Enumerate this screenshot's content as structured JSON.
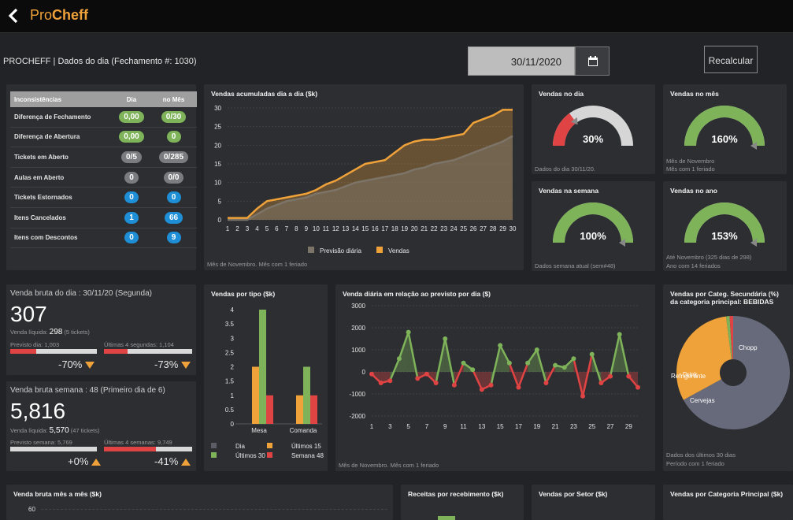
{
  "app": {
    "brand_light": "Pro",
    "brand_bold": "Cheff"
  },
  "header": {
    "title": "PROCHEFF | Dados do dia (Fechamento #: 1030)",
    "date": "30/11/2020",
    "recalc": "Recalcular"
  },
  "inconsistencias": {
    "headers": [
      "Inconsistências",
      "Dia",
      "no Mês"
    ],
    "rows": [
      {
        "label": "Diferença de Fechamento",
        "dia": "0,00",
        "mes": "0/30",
        "dia_color": "green",
        "mes_color": "green"
      },
      {
        "label": "Diferença de Abertura",
        "dia": "0,00",
        "mes": "0",
        "dia_color": "green",
        "mes_color": "green"
      },
      {
        "label": "Tickets em Aberto",
        "dia": "0/5",
        "mes": "0/285",
        "dia_color": "gray",
        "mes_color": "gray"
      },
      {
        "label": "Aulas em Aberto",
        "dia": "0",
        "mes": "0/0",
        "dia_color": "gray",
        "mes_color": "gray"
      },
      {
        "label": "Tickets Estornados",
        "dia": "0",
        "mes": "0",
        "dia_color": "blue",
        "mes_color": "blue"
      },
      {
        "label": "Itens Cancelados",
        "dia": "1",
        "mes": "66",
        "dia_color": "blue",
        "mes_color": "blue"
      },
      {
        "label": "Itens com Descontos",
        "dia": "0",
        "mes": "9",
        "dia_color": "blue",
        "mes_color": "blue"
      }
    ]
  },
  "acumuladas": {
    "title": "Vendas acumuladas dia a dia ($k)",
    "footer": "Mês de Novembro. Mês com 1 feriado",
    "legend": [
      "Previsão diária",
      "Vendas"
    ]
  },
  "gauges": [
    {
      "title": "Vendas no dia",
      "value": "30%",
      "frac": 0.3,
      "color": "#e04343",
      "footer": [
        "Dados do dia 30/11/20."
      ]
    },
    {
      "title": "Vendas no mês",
      "value": "160%",
      "frac": 1.0,
      "color": "#7eb35a",
      "footer": [
        "Mês de Novembro",
        "Mês com 1 feriado"
      ]
    },
    {
      "title": "Vendas na semana",
      "value": "100%",
      "frac": 1.0,
      "color": "#7eb35a",
      "footer": [
        "Dados semana atual (sem#48)"
      ]
    },
    {
      "title": "Vendas no ano",
      "value": "153%",
      "frac": 1.0,
      "color": "#7eb35a",
      "footer": [
        "Até Novembro (325 dias de 298)",
        "Ano com 14 feriados"
      ]
    }
  ],
  "venda_dia": {
    "title": "Venda bruta do dia : 30/11/20 (Segunda)",
    "value": "307",
    "liq_label": "Venda líquida:",
    "liq_value": "298",
    "liq_tickets": "(5 tickets)",
    "prev_label": "Previsto dia: 1,003",
    "ult_label": "Últimas 4 segundas: 1,104",
    "pct1": "-70%",
    "pct2": "-73%",
    "bar1": 0.3,
    "bar2": 0.27
  },
  "venda_semana": {
    "title": "Venda bruta semana : 48 (Primeiro dia de 6)",
    "value": "5,816",
    "liq_label": "Venda líquida:",
    "liq_value": "5,570",
    "liq_tickets": "(47 tickets)",
    "prev_label": "Previsto semana: 5,769",
    "ult_label": "Últimas 4 semanas: 9,749",
    "pct1": "+0%",
    "pct2": "-41%",
    "bar1": 1.0,
    "bar2": 0.59
  },
  "por_tipo": {
    "title": "Vendas por tipo ($k)",
    "legend": [
      "Dia",
      "Últimos 15",
      "Últimos 30",
      "Semana 48"
    ]
  },
  "diaria": {
    "title": "Venda diária em relação ao previsto por dia ($)",
    "footer": "Mês de Novembro. Mês com 1 feriado"
  },
  "pie": {
    "title": "Vendas por Categ. Secundária (%) da categoria principal: BEBIDAS",
    "footer": [
      "Dados dos últimos 30 dias",
      "Período com 1 feriado"
    ],
    "labels": [
      "Chopp",
      "Cervejas",
      "Refrigerante",
      "Drink"
    ]
  },
  "bottom": {
    "mes_a_mes": "Venda bruta mês a mês ($k)",
    "mes_tick": "60",
    "receitas": "Receitas por recebimento ($k)",
    "setor": "Vendas por Setor ($k)",
    "categoria": "Vendas por Categoria Principal ($k)"
  },
  "chart_data": [
    {
      "type": "area",
      "title": "Vendas acumuladas dia a dia ($k)",
      "x": [
        1,
        2,
        3,
        4,
        5,
        6,
        7,
        8,
        9,
        10,
        11,
        12,
        13,
        14,
        15,
        16,
        17,
        18,
        19,
        20,
        21,
        22,
        23,
        24,
        25,
        26,
        27,
        28,
        29,
        30
      ],
      "ylim": [
        0,
        30
      ],
      "yticks": [
        0,
        5,
        10,
        15,
        20,
        25,
        30
      ],
      "series": [
        {
          "name": "Previsão diária",
          "color": "#7d7468",
          "values": [
            0,
            0,
            0,
            1.5,
            3,
            4,
            5,
            5.5,
            6,
            7,
            7.5,
            8,
            9,
            10,
            10.5,
            11,
            11.5,
            12,
            12.5,
            13.5,
            14,
            15,
            15.5,
            16,
            17,
            18,
            19,
            20,
            21,
            22.5
          ]
        },
        {
          "name": "Vendas",
          "color": "#f0a23a",
          "values": [
            0.5,
            0.5,
            0.5,
            3,
            5,
            5.5,
            6,
            6.5,
            7,
            8,
            9.5,
            10.5,
            12,
            13.5,
            15,
            15.5,
            16,
            18,
            20,
            21,
            21.5,
            21.5,
            22,
            22.5,
            23,
            26,
            27,
            28,
            29.5,
            29.5
          ]
        }
      ]
    },
    {
      "type": "bar",
      "title": "Vendas por tipo ($k)",
      "categories": [
        "Mesa",
        "Comanda"
      ],
      "ylim": [
        0,
        4
      ],
      "yticks": [
        0,
        0.5,
        1,
        1.5,
        2,
        2.5,
        3,
        3.5,
        4
      ],
      "series": [
        {
          "name": "Dia",
          "color": "#5a5d66",
          "values": [
            0,
            0
          ]
        },
        {
          "name": "Últimos 15",
          "color": "#f0a23a",
          "values": [
            2,
            1
          ]
        },
        {
          "name": "Últimos 30",
          "color": "#7eb35a",
          "values": [
            4,
            2
          ]
        },
        {
          "name": "Semana 48",
          "color": "#e04343",
          "values": [
            1,
            1
          ]
        }
      ]
    },
    {
      "type": "line",
      "title": "Venda diária em relação ao previsto por dia ($)",
      "x": [
        1,
        2,
        3,
        4,
        5,
        6,
        7,
        8,
        9,
        10,
        11,
        12,
        13,
        14,
        15,
        16,
        17,
        18,
        19,
        20,
        21,
        22,
        23,
        24,
        25,
        26,
        27,
        28,
        29,
        30
      ],
      "ylim": [
        -2000,
        3000
      ],
      "yticks": [
        -2000,
        -1000,
        0,
        1000,
        2000,
        3000
      ],
      "values": [
        -100,
        -500,
        -400,
        600,
        1800,
        -300,
        -100,
        -500,
        1500,
        -600,
        400,
        100,
        -800,
        -600,
        1200,
        400,
        -700,
        400,
        1000,
        -500,
        300,
        200,
        600,
        -1100,
        800,
        -500,
        -200,
        1700,
        -200,
        -700
      ]
    },
    {
      "type": "pie",
      "title": "Vendas por Categ. Secundária (%) da categoria principal: BEBIDAS",
      "categories": [
        "Chopp",
        "Cervejas",
        "Refrigerante",
        "Drink"
      ],
      "values": [
        67,
        31,
        1,
        1
      ],
      "colors": [
        "#666a7a",
        "#f0a23a",
        "#7eb35a",
        "#e04343"
      ]
    }
  ]
}
